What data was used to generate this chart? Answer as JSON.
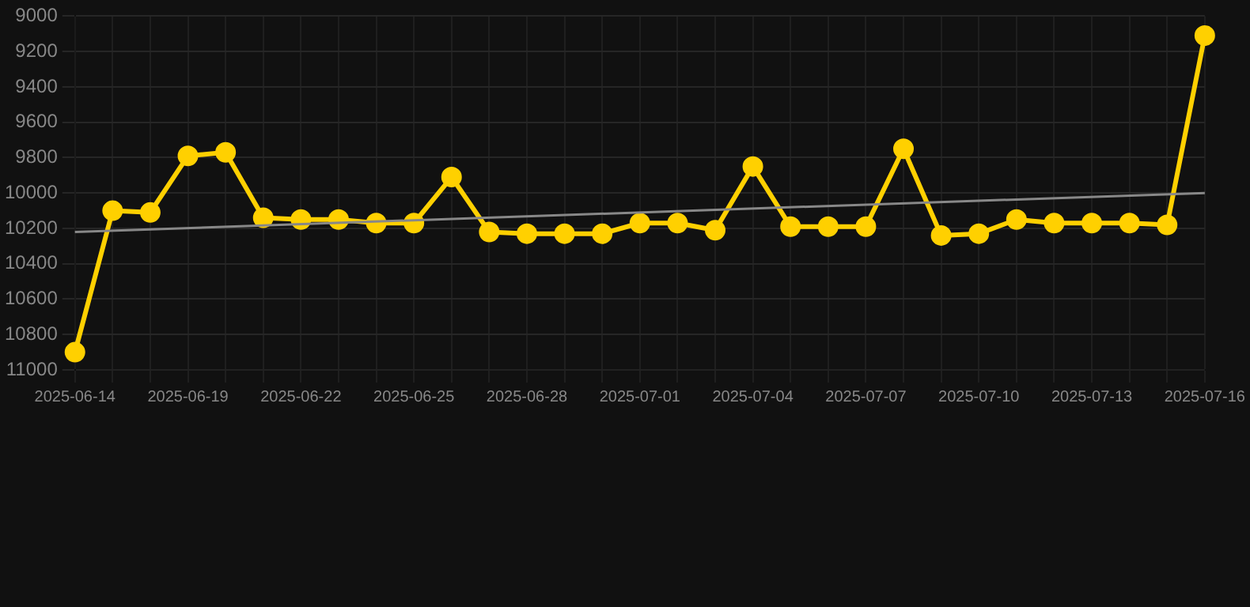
{
  "chart_data": {
    "type": "line",
    "categories": [
      "2025-06-14",
      null,
      null,
      "2025-06-19",
      null,
      null,
      "2025-06-22",
      null,
      null,
      "2025-06-25",
      null,
      null,
      "2025-06-28",
      null,
      null,
      "2025-07-01",
      null,
      null,
      "2025-07-04",
      null,
      null,
      "2025-07-07",
      null,
      null,
      "2025-07-10",
      null,
      null,
      "2025-07-13",
      null,
      null,
      "2025-07-16"
    ],
    "series": [
      {
        "type": "line",
        "color": "#ffd000",
        "marker": "circle",
        "values": [
          10900,
          10100,
          10110,
          9790,
          9770,
          10140,
          10150,
          10150,
          10170,
          10170,
          9910,
          10220,
          10230,
          10230,
          10230,
          10170,
          10170,
          10210,
          9850,
          10190,
          10190,
          10190,
          9750,
          10240,
          10230,
          10150,
          10170,
          10170,
          10170,
          10180,
          9110
        ]
      },
      {
        "type": "line",
        "color": "#888888",
        "marker": "none",
        "values": [
          10220,
          null,
          null,
          null,
          null,
          null,
          null,
          null,
          null,
          null,
          null,
          null,
          null,
          null,
          null,
          null,
          null,
          null,
          null,
          null,
          null,
          null,
          null,
          null,
          null,
          null,
          null,
          null,
          null,
          null,
          10000
        ]
      }
    ],
    "ylim": [
      11000,
      9000
    ],
    "yticks": [
      9000,
      9200,
      9400,
      9600,
      9800,
      10000,
      10200,
      10400,
      10600,
      10800,
      11000
    ],
    "grid": true
  }
}
